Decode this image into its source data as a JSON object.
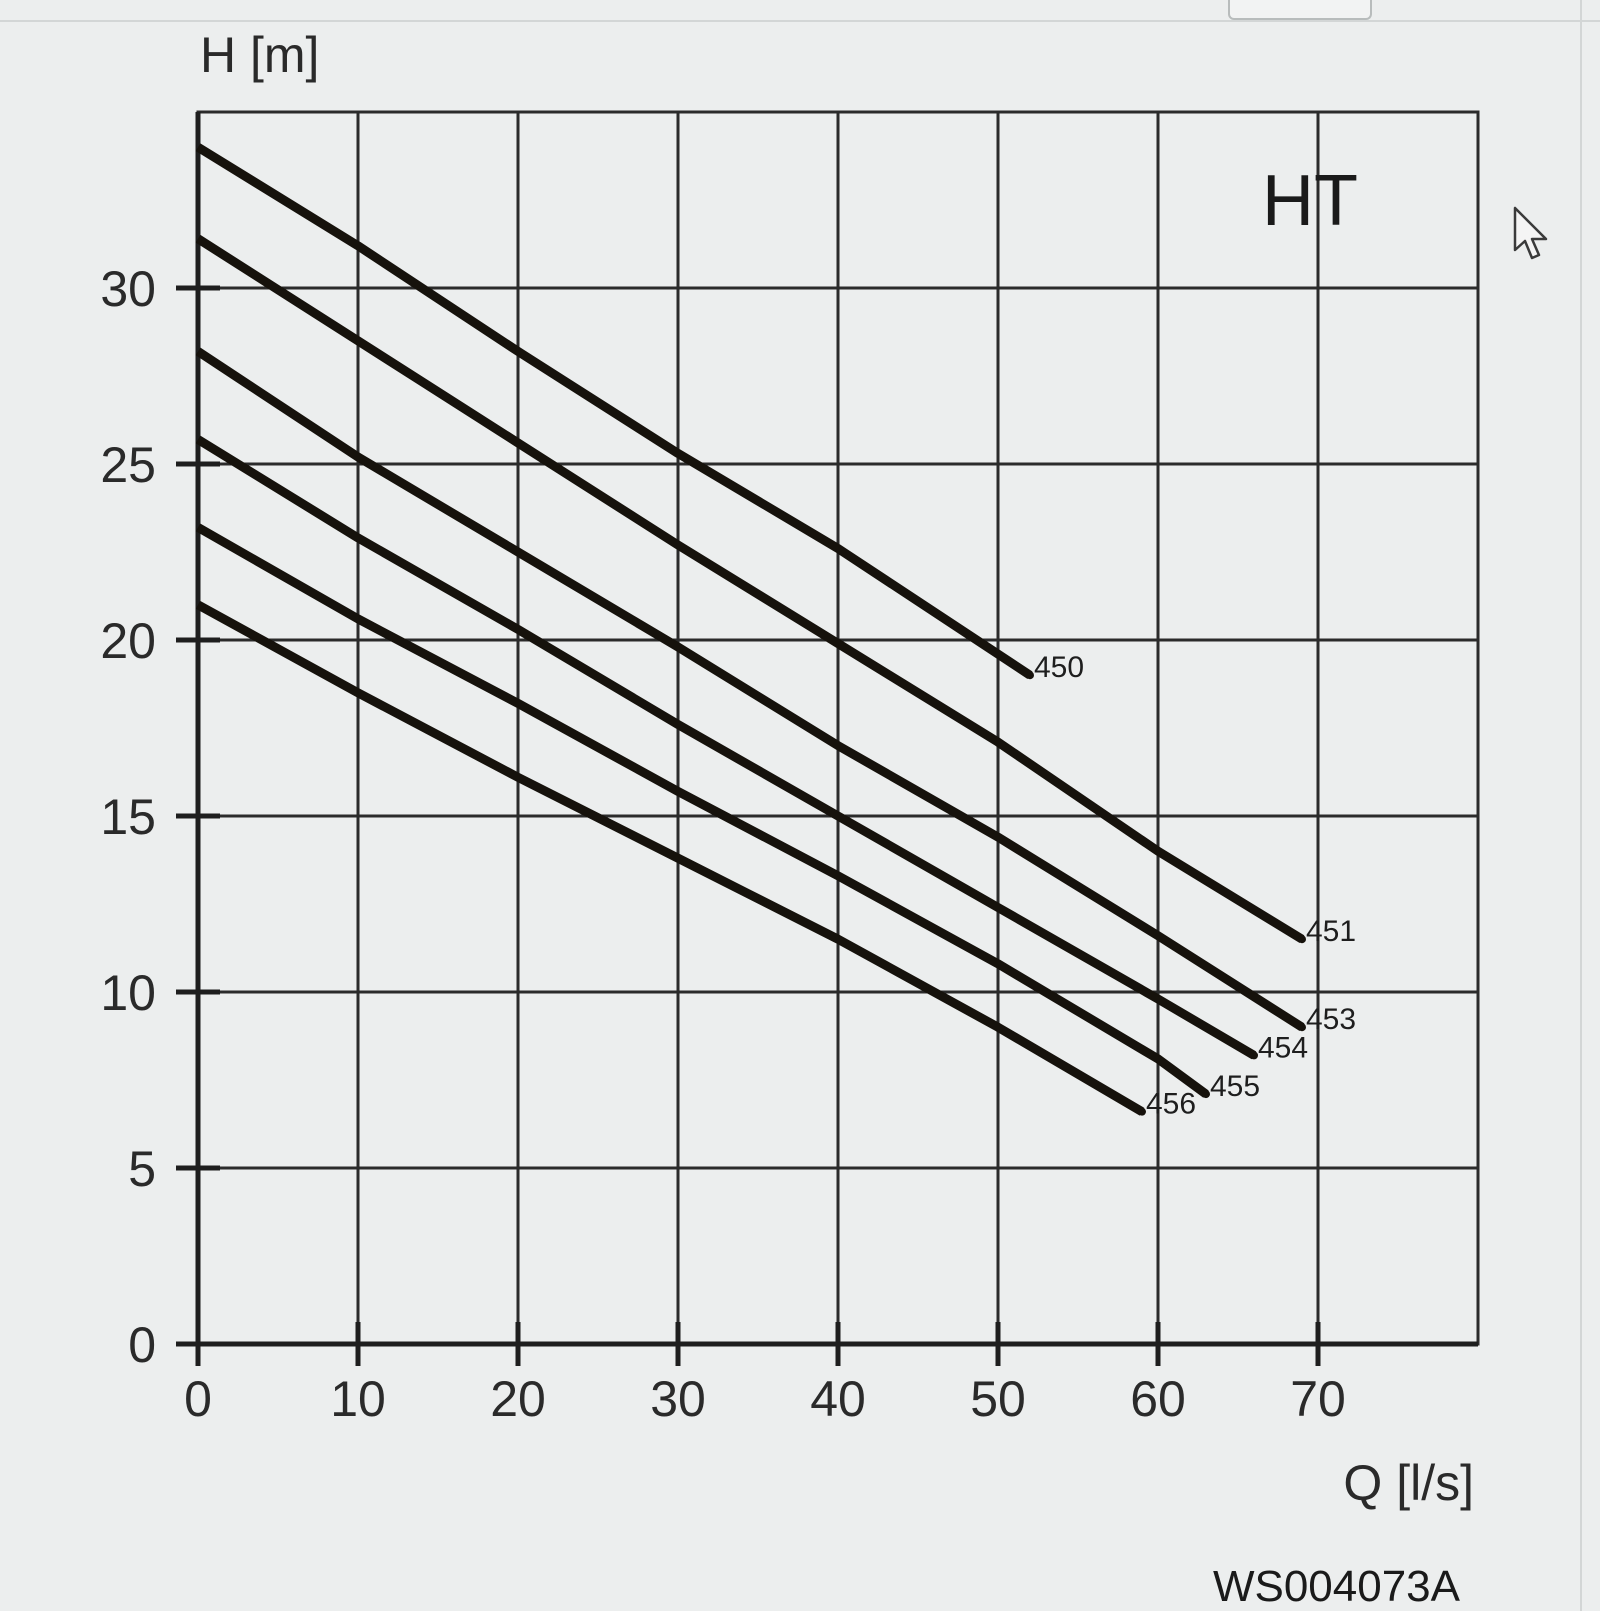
{
  "chart_data": {
    "type": "line",
    "badge": "HT",
    "figure_code": "WS004073A",
    "xlabel": "Q [l/s]",
    "ylabel": "H [m]",
    "xlim": [
      0,
      80
    ],
    "ylim": [
      0,
      35
    ],
    "x_ticks": [
      0,
      10,
      20,
      30,
      40,
      50,
      60,
      70
    ],
    "y_ticks": [
      0,
      5,
      10,
      15,
      20,
      25,
      30
    ],
    "grid": true,
    "series": [
      {
        "name": "450",
        "x": [
          0,
          10,
          20,
          30,
          40,
          52
        ],
        "y": [
          34.0,
          31.2,
          28.2,
          25.3,
          22.6,
          19.0
        ]
      },
      {
        "name": "451",
        "x": [
          0,
          10,
          20,
          30,
          40,
          50,
          60,
          69
        ],
        "y": [
          31.4,
          28.5,
          25.6,
          22.7,
          19.9,
          17.1,
          14.0,
          11.5
        ]
      },
      {
        "name": "453",
        "x": [
          0,
          10,
          20,
          30,
          40,
          50,
          60,
          69
        ],
        "y": [
          28.2,
          25.2,
          22.5,
          19.8,
          17.0,
          14.4,
          11.6,
          9.0
        ]
      },
      {
        "name": "454",
        "x": [
          0,
          10,
          20,
          30,
          40,
          50,
          60,
          66
        ],
        "y": [
          25.7,
          22.9,
          20.3,
          17.6,
          15.0,
          12.4,
          9.8,
          8.2
        ]
      },
      {
        "name": "455",
        "x": [
          0,
          10,
          20,
          30,
          40,
          50,
          60,
          63
        ],
        "y": [
          23.2,
          20.6,
          18.2,
          15.7,
          13.3,
          10.8,
          8.1,
          7.1
        ]
      },
      {
        "name": "456",
        "x": [
          0,
          10,
          20,
          30,
          40,
          50,
          59
        ],
        "y": [
          21.0,
          18.5,
          16.1,
          13.8,
          11.5,
          9.0,
          6.6
        ]
      }
    ]
  }
}
